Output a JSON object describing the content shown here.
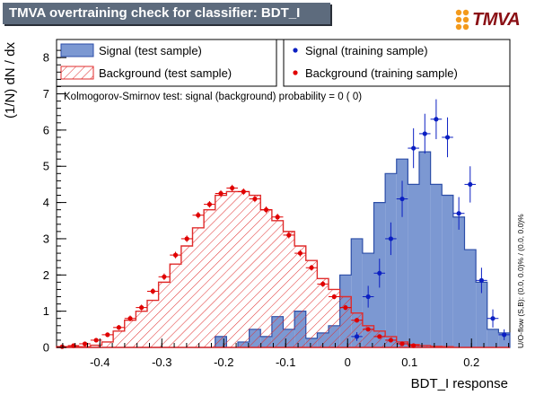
{
  "header": {
    "title": "TMVA overtraining check for classifier: BDT_I",
    "logo_text": "TMVA"
  },
  "legend": {
    "signal_test": "Signal (test sample)",
    "signal_train": "Signal (training sample)",
    "background_test": "Background (test sample)",
    "background_train": "Background (training sample)"
  },
  "annotations": {
    "ks_test": "Kolmogorov-Smirnov test: signal (background) probability =    0 (    0)",
    "overflow_note": "U/O-flow (S,B): (0.0, 0.0)% / (0.0, 0.0)%"
  },
  "colors": {
    "signal_fill": "#7c98d2",
    "signal_line": "#2c4ea8",
    "signal_points": "#0b1fc2",
    "background_hatch": "#e02c2c",
    "background_points": "#e00000",
    "title_bar": "#5d6b7d"
  },
  "chart_data": {
    "type": "histogram",
    "title": "TMVA overtraining check for classifier: BDT_I",
    "xlabel": "BDT_I response",
    "ylabel": "(1/N) dN / dx",
    "xlim": [
      -0.47,
      0.262
    ],
    "ylim": [
      0,
      8.5
    ],
    "xticks": [
      -0.4,
      -0.3,
      -0.2,
      -0.1,
      0,
      0.1,
      0.2
    ],
    "xtick_labels": [
      "-0.4",
      "-0.3",
      "-0.2",
      "-0.1",
      "0",
      "0.1",
      "0.2"
    ],
    "yticks": [
      0,
      1,
      2,
      3,
      4,
      5,
      6,
      7,
      8
    ],
    "ytick_labels": [
      "0",
      "1",
      "2",
      "3",
      "4",
      "5",
      "6",
      "7",
      "8"
    ],
    "bin_edges": [
      -0.47,
      -0.4517,
      -0.4334,
      -0.4151,
      -0.3968,
      -0.3785,
      -0.3602,
      -0.3419,
      -0.3236,
      -0.3053,
      -0.287,
      -0.2687,
      -0.2504,
      -0.2321,
      -0.2138,
      -0.1955,
      -0.1772,
      -0.1589,
      -0.1406,
      -0.1223,
      -0.104,
      -0.0857,
      -0.0674,
      -0.0491,
      -0.0308,
      -0.0125,
      0.0058,
      0.0241,
      0.0424,
      0.0607,
      0.079,
      0.0973,
      0.1156,
      0.1339,
      0.1522,
      0.1705,
      0.1888,
      0.2071,
      0.2254,
      0.2437,
      0.262
    ],
    "series": [
      {
        "name": "Signal (test sample)",
        "style": "filled",
        "values": [
          0,
          0,
          0,
          0,
          0,
          0,
          0,
          0,
          0,
          0,
          0,
          0,
          0,
          0,
          0.3,
          0,
          0.15,
          0.5,
          0.3,
          0.85,
          0.5,
          1.0,
          0.25,
          0.4,
          0.6,
          2.0,
          3.0,
          2.6,
          4.0,
          4.8,
          5.2,
          4.5,
          5.4,
          4.5,
          4.2,
          3.6,
          2.7,
          1.8,
          0.5,
          0.4
        ]
      },
      {
        "name": "Background (test sample)",
        "style": "hatched",
        "values": [
          0.02,
          0.02,
          0.02,
          0.06,
          0.15,
          0.45,
          0.75,
          1.0,
          1.3,
          1.8,
          2.3,
          2.8,
          3.3,
          3.8,
          4.2,
          4.3,
          4.3,
          4.2,
          3.8,
          3.5,
          3.2,
          2.8,
          2.4,
          1.9,
          1.6,
          1.4,
          0.95,
          0.6,
          0.45,
          0.3,
          0.15,
          0.08,
          0.05,
          0.03,
          0.02,
          0,
          0,
          0,
          0,
          0
        ]
      },
      {
        "name": "Signal (training sample)",
        "style": "points",
        "x": [
          0.0149,
          0.0332,
          0.0515,
          0.0698,
          0.0881,
          0.1064,
          0.1247,
          0.143,
          0.1613,
          0.1796,
          0.1979,
          0.2162,
          0.2345,
          0.2528
        ],
        "values": [
          0.3,
          1.4,
          2.05,
          3.0,
          4.1,
          5.5,
          5.9,
          6.3,
          5.8,
          3.7,
          4.5,
          1.85,
          0.8,
          0.35
        ],
        "errors": [
          0.12,
          0.3,
          0.4,
          0.45,
          0.5,
          0.55,
          0.55,
          0.55,
          0.55,
          0.45,
          0.5,
          0.35,
          0.25,
          0.15
        ]
      },
      {
        "name": "Background (training sample)",
        "style": "points",
        "x": [
          -0.4609,
          -0.4426,
          -0.4243,
          -0.406,
          -0.3877,
          -0.3694,
          -0.3511,
          -0.3328,
          -0.3145,
          -0.2962,
          -0.2779,
          -0.2596,
          -0.2413,
          -0.223,
          -0.2047,
          -0.1864,
          -0.1681,
          -0.1498,
          -0.1315,
          -0.1132,
          -0.0949,
          -0.0766,
          -0.0583,
          -0.04,
          -0.0217,
          -0.0034,
          0.0149,
          0.0332,
          0.0515,
          0.0698,
          0.0881,
          0.1064
        ],
        "values": [
          0.02,
          0.05,
          0.1,
          0.2,
          0.35,
          0.55,
          0.8,
          1.1,
          1.55,
          1.95,
          2.55,
          3.0,
          3.65,
          3.95,
          4.25,
          4.4,
          4.3,
          4.1,
          3.8,
          3.6,
          3.1,
          2.6,
          2.2,
          1.75,
          1.4,
          1.1,
          0.75,
          0.5,
          0.3,
          0.2,
          0.1,
          0.05
        ],
        "errors": [
          0.02,
          0.03,
          0.05,
          0.05,
          0.06,
          0.07,
          0.08,
          0.08,
          0.08,
          0.09,
          0.09,
          0.09,
          0.09,
          0.09,
          0.09,
          0.09,
          0.09,
          0.09,
          0.09,
          0.09,
          0.09,
          0.09,
          0.08,
          0.08,
          0.07,
          0.07,
          0.06,
          0.05,
          0.04,
          0.03,
          0.03,
          0.02
        ]
      }
    ]
  }
}
